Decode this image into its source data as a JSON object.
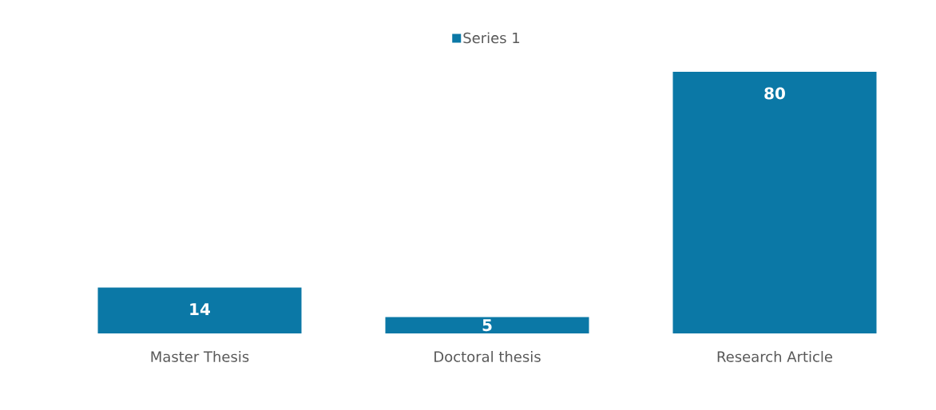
{
  "chart_data": {
    "type": "bar",
    "categories": [
      "Master Thesis",
      "Doctoral thesis",
      "Research Article"
    ],
    "series": [
      {
        "name": "Series 1",
        "color": "#0b78a6",
        "values": [
          14,
          5,
          80
        ]
      }
    ],
    "data_labels": true,
    "legend": "top",
    "tick_labels": "x"
  }
}
